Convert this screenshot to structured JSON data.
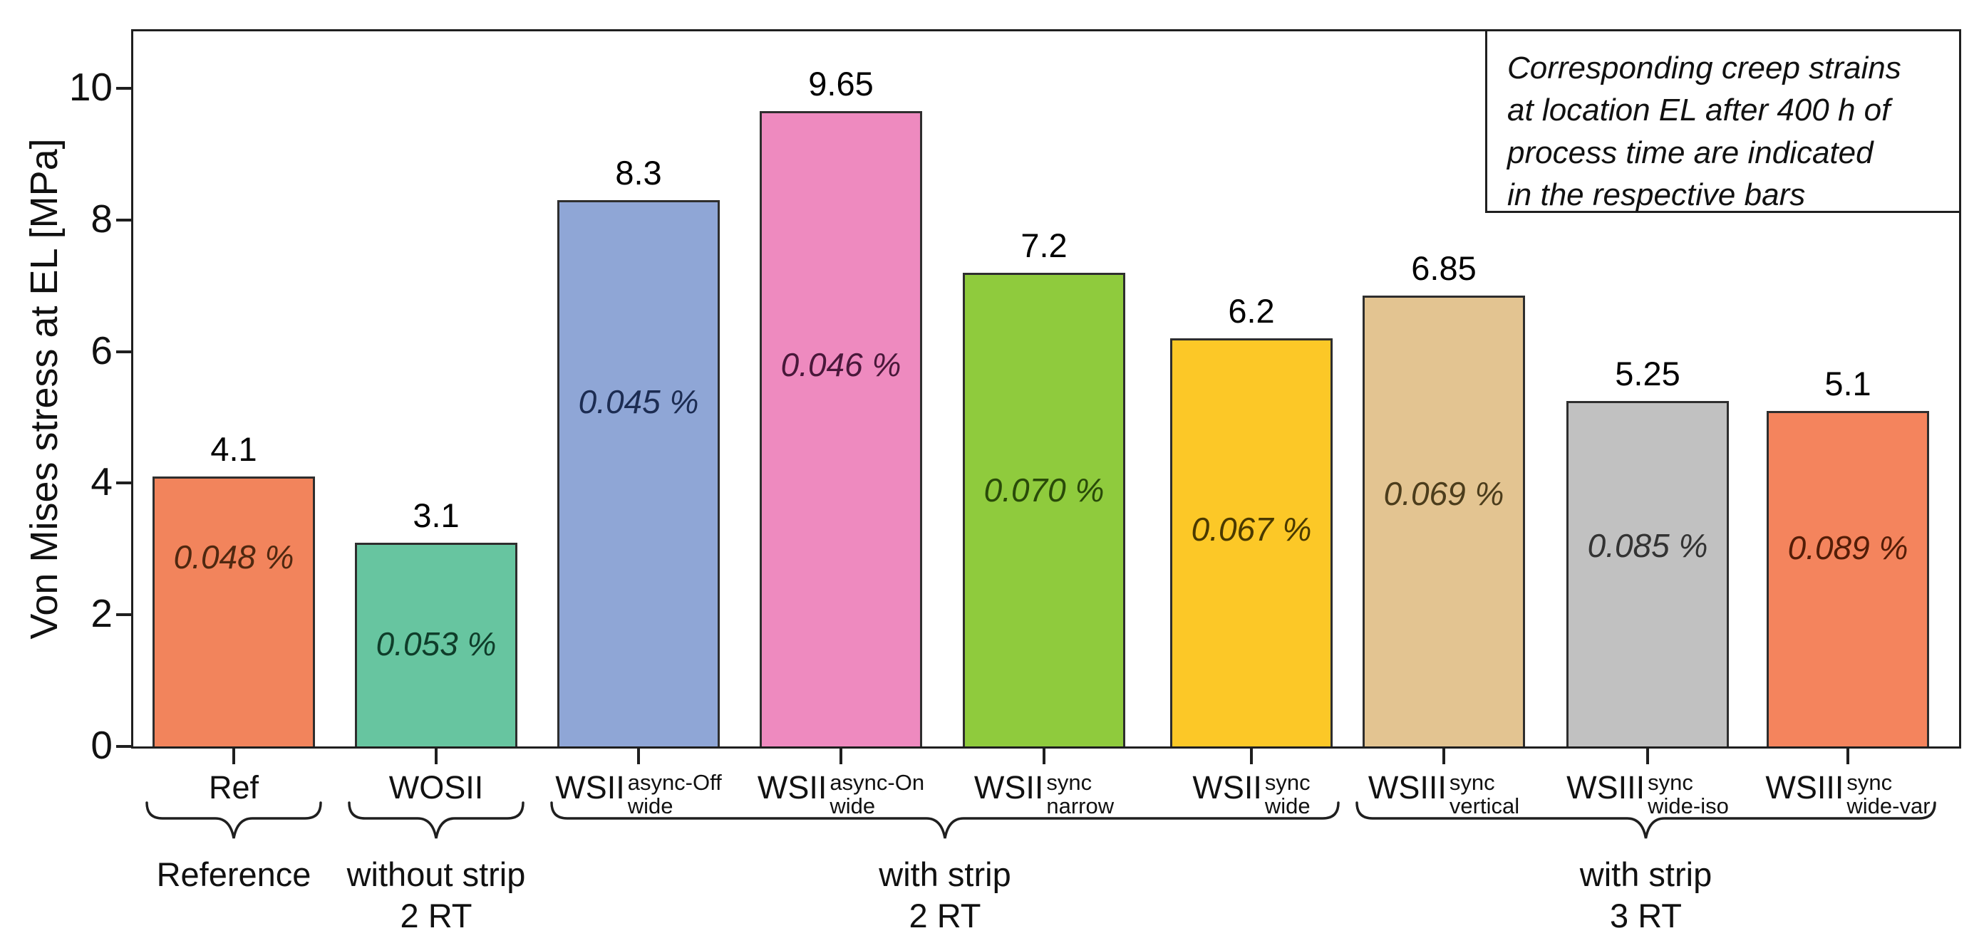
{
  "chart_data": {
    "type": "bar",
    "title": "",
    "xlabel": "",
    "ylabel": "Von Mises stress at EL [MPa]",
    "ylim": [
      0,
      10.9
    ],
    "yticks": [
      "0",
      "2",
      "4",
      "6",
      "8",
      "10"
    ],
    "grid": false,
    "annotation_lines": [
      "Corresponding creep strains",
      "at location EL after 400 h of",
      "process time are indicated",
      "in the respective bars"
    ],
    "bars": [
      {
        "label_base": "Ref",
        "label_sup": "",
        "label_sub": "",
        "value": 4.1,
        "value_label": "4.1",
        "strain_label": "0.048 %",
        "color": "#f2845c",
        "strain_color": "#4f2810"
      },
      {
        "label_base": "WOSII",
        "label_sup": "",
        "label_sub": "",
        "value": 3.1,
        "value_label": "3.1",
        "strain_label": "0.053 %",
        "color": "#67c5a0",
        "strain_color": "#0f3d2a"
      },
      {
        "label_base": "WSII",
        "label_sup": "async-Off",
        "label_sub": "wide",
        "value": 8.3,
        "value_label": "8.3",
        "strain_label": "0.045 %",
        "color": "#8fa6d6",
        "strain_color": "#1c2c52"
      },
      {
        "label_base": "WSII",
        "label_sup": "async-On",
        "label_sub": "wide",
        "value": 9.65,
        "value_label": "9.65",
        "strain_label": "0.046 %",
        "color": "#ee8abf",
        "strain_color": "#49183a"
      },
      {
        "label_base": "WSII",
        "label_sup": "sync",
        "label_sub": "narrow",
        "value": 7.2,
        "value_label": "7.2",
        "strain_label": "0.070 %",
        "color": "#8fcb3d",
        "strain_color": "#294a09"
      },
      {
        "label_base": "WSII",
        "label_sup": "sync",
        "label_sub": "wide",
        "value": 6.2,
        "value_label": "6.2",
        "strain_label": "0.067 %",
        "color": "#fcc827",
        "strain_color": "#4a3900"
      },
      {
        "label_base": "WSIII",
        "label_sup": "sync",
        "label_sub": "vertical",
        "value": 6.85,
        "value_label": "6.85",
        "strain_label": "0.069 %",
        "color": "#e3c491",
        "strain_color": "#4c3d1c"
      },
      {
        "label_base": "WSIII",
        "label_sup": "sync",
        "label_sub": "wide-iso",
        "value": 5.25,
        "value_label": "5.25",
        "strain_label": "0.085 %",
        "color": "#c1c1c1",
        "strain_color": "#333333"
      },
      {
        "label_base": "WSIII",
        "label_sup": "sync",
        "label_sub": "wide-var",
        "value": 5.1,
        "value_label": "5.1",
        "strain_label": "0.089 %",
        "color": "#f4845d",
        "strain_color": "#531d07"
      }
    ],
    "groups": [
      {
        "line1": "Reference",
        "line2": "",
        "first_bar": 0,
        "last_bar": 0
      },
      {
        "line1": "without strip",
        "line2": "2 RT",
        "first_bar": 1,
        "last_bar": 1
      },
      {
        "line1": "with strip",
        "line2": "2 RT",
        "first_bar": 2,
        "last_bar": 5
      },
      {
        "line1": "with strip",
        "line2": "3 RT",
        "first_bar": 6,
        "last_bar": 8
      }
    ]
  }
}
